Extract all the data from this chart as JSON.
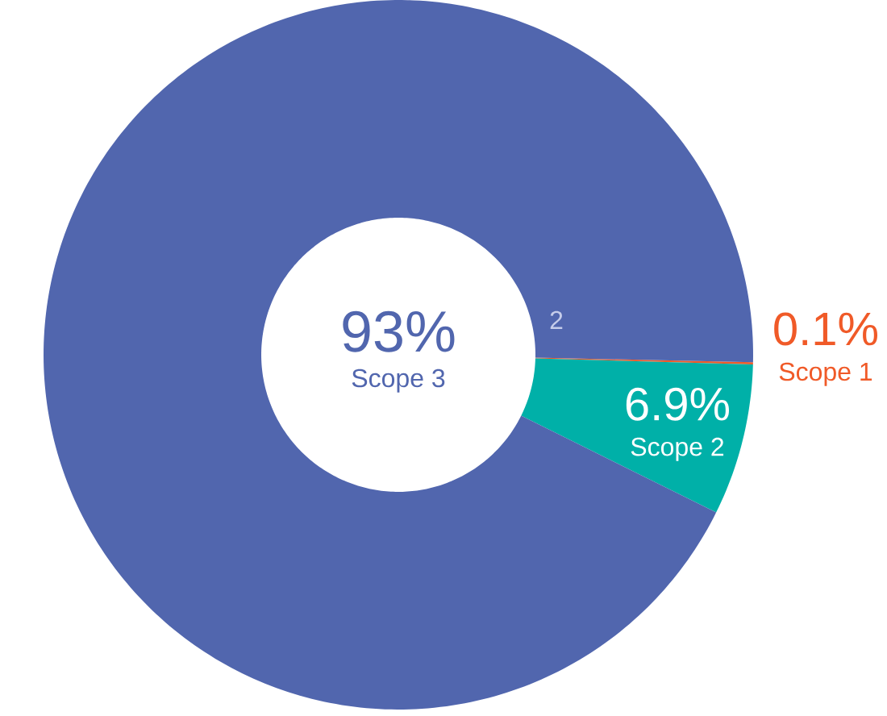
{
  "chart_data": {
    "type": "donut",
    "categories": [
      "Scope 1",
      "Scope 2",
      "Scope 3"
    ],
    "values": [
      0.1,
      6.9,
      93
    ],
    "colors": [
      "#f05a28",
      "#00b0a8",
      "#5166ae"
    ],
    "value_labels": [
      "0.1%",
      "6.9%",
      "93%"
    ],
    "annotations": [
      "2"
    ]
  }
}
